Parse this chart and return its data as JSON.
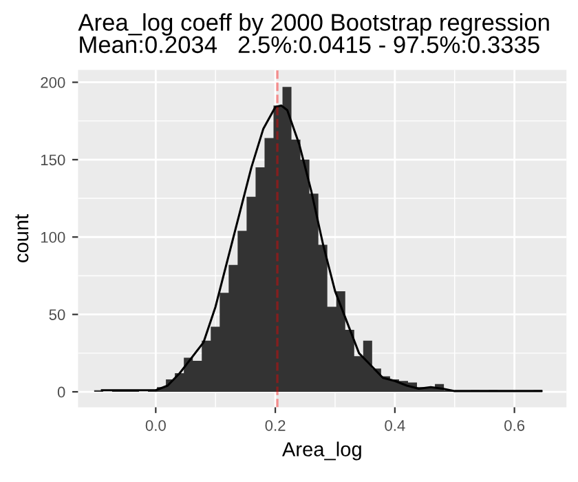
{
  "chart_data": {
    "type": "histogram",
    "title": "Area_log coeff by 2000 Bootstrap regression\nMean:0.2034   2.5%:0.0415 - 97.5%:0.3335",
    "xlabel": "Area_log",
    "ylabel": "count",
    "bins": [
      -0.103,
      -0.088,
      -0.073,
      -0.058,
      -0.043,
      -0.028,
      -0.013,
      0.002,
      0.017,
      0.032,
      0.047,
      0.062,
      0.077,
      0.092,
      0.107,
      0.122,
      0.137,
      0.152,
      0.167,
      0.182,
      0.197,
      0.212,
      0.227,
      0.242,
      0.257,
      0.272,
      0.287,
      0.302,
      0.317,
      0.332,
      0.347,
      0.362,
      0.377,
      0.392,
      0.407,
      0.422,
      0.437,
      0.452,
      0.467,
      0.482,
      0.497,
      0.512,
      0.527,
      0.542,
      0.557,
      0.572,
      0.587,
      0.602,
      0.617,
      0.632,
      0.647
    ],
    "values": [
      1,
      0,
      1,
      1,
      1,
      0,
      1,
      3,
      8,
      12,
      22,
      20,
      33,
      42,
      64,
      82,
      104,
      126,
      145,
      164,
      185,
      197,
      163,
      150,
      128,
      95,
      55,
      65,
      40,
      23,
      33,
      15,
      10,
      8,
      7,
      6,
      3,
      3,
      5,
      1,
      0,
      0,
      1,
      0,
      1,
      0,
      0,
      0,
      0,
      1
    ],
    "color": "#333333",
    "series": [
      {
        "type": "line",
        "color": "#000000",
        "x": [
          -0.09,
          -0.05,
          0.0,
          0.02,
          0.04,
          0.06,
          0.08,
          0.1,
          0.12,
          0.14,
          0.16,
          0.18,
          0.2,
          0.21,
          0.22,
          0.24,
          0.26,
          0.28,
          0.3,
          0.32,
          0.34,
          0.36,
          0.38,
          0.4,
          0.42,
          0.44,
          0.46,
          0.48,
          0.5,
          0.55,
          0.6,
          0.645
        ],
        "values": [
          1,
          1,
          1,
          4,
          12,
          22,
          32,
          55,
          85,
          115,
          145,
          170,
          184,
          185,
          182,
          160,
          130,
          95,
          65,
          45,
          25,
          17,
          9,
          7,
          4,
          2,
          3,
          2,
          0.5,
          0.5,
          0.5,
          0.5
        ]
      }
    ],
    "ref_lines": [
      {
        "axis": "x",
        "value": 0.2034,
        "color": "#ff0000",
        "line_style": "dashed"
      }
    ],
    "xlim": [
      -0.13,
      0.687
    ],
    "ylim": [
      -10,
      208
    ],
    "xticks": [
      {
        "value": 0,
        "label": "0.0"
      },
      {
        "value": 0.2,
        "label": "0.2"
      },
      {
        "value": 0.4,
        "label": "0.4"
      },
      {
        "value": 0.6,
        "label": "0.6"
      }
    ],
    "yticks": [
      0,
      50,
      100,
      150,
      200
    ],
    "grid": true
  }
}
